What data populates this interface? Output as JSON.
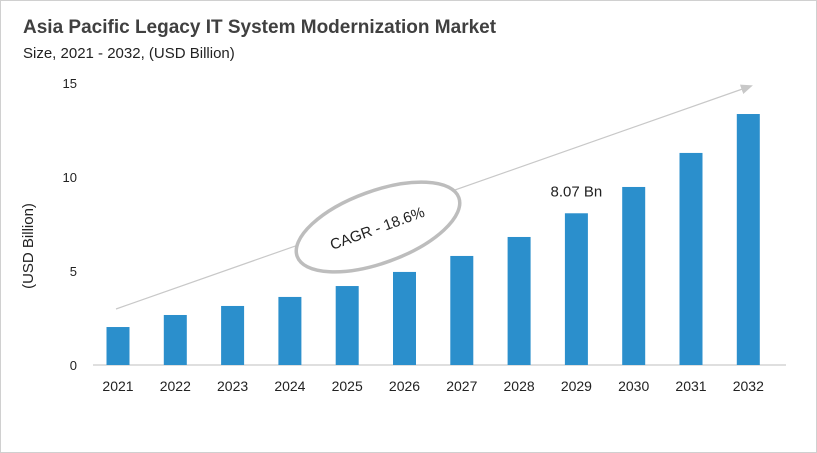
{
  "chart_data": {
    "type": "bar",
    "title": "Asia Pacific Legacy IT System Modernization  Market",
    "subtitle": "Size, 2021 - 2032, (USD Billion)",
    "xlabel": "",
    "ylabel": "(USD Billion)",
    "ylim": [
      0,
      15
    ],
    "yticks": [
      "0",
      "5",
      "10",
      "15"
    ],
    "grid": false,
    "categories": [
      "2021",
      "2022",
      "2023",
      "2024",
      "2025",
      "2026",
      "2027",
      "2028",
      "2029",
      "2030",
      "2031",
      "2032"
    ],
    "values": [
      2.02,
      2.66,
      3.14,
      3.62,
      4.2,
      4.95,
      5.8,
      6.81,
      8.07,
      9.47,
      11.28,
      13.35
    ],
    "bar_color": "#2b8fcc",
    "annotations": {
      "value_label": "8.07 Bn",
      "value_label_category": "2029",
      "cagr": "CAGR - 18.6%"
    }
  }
}
